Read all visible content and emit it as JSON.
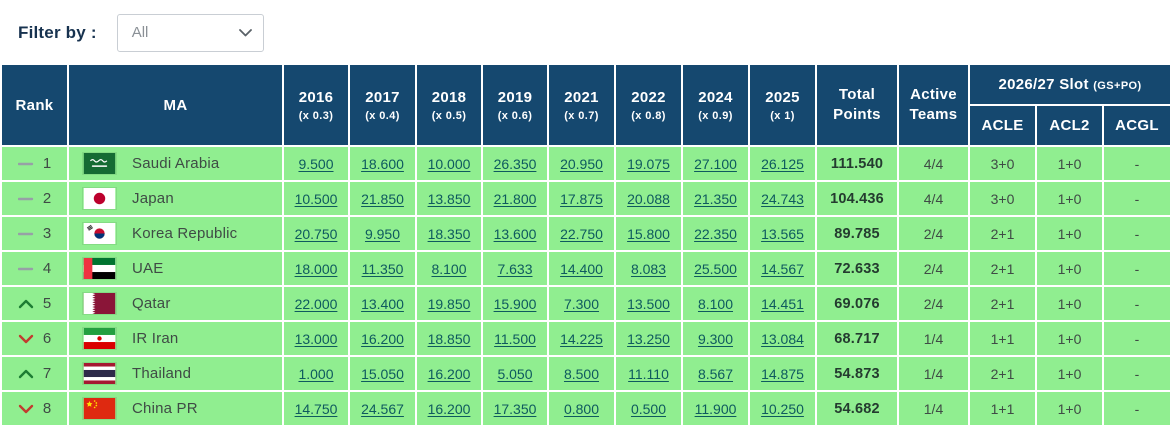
{
  "filter": {
    "label": "Filter by :",
    "selected": "All"
  },
  "colors": {
    "header_bg": "#15486F",
    "row_bg": "#90EE90",
    "link": "#0E5A5E",
    "label_navy": "#17324F",
    "body_text": "#3F4B45",
    "total_text": "#243B2F",
    "up": "#1D7D33",
    "down": "#C23B2F",
    "dash": "#97A0A6"
  },
  "table": {
    "headers": {
      "rank": "Rank",
      "ma": "MA",
      "years": [
        {
          "year": "2016",
          "multiplier": "(x 0.3)"
        },
        {
          "year": "2017",
          "multiplier": "(x 0.4)"
        },
        {
          "year": "2018",
          "multiplier": "(x 0.5)"
        },
        {
          "year": "2019",
          "multiplier": "(x 0.6)"
        },
        {
          "year": "2021",
          "multiplier": "(x 0.7)"
        },
        {
          "year": "2022",
          "multiplier": "(x 0.8)"
        },
        {
          "year": "2024",
          "multiplier": "(x 0.9)"
        },
        {
          "year": "2025",
          "multiplier": "(x 1)"
        }
      ],
      "total": "Total Points",
      "active": "Active Teams",
      "slot_group": "2026/27 Slot",
      "slot_suffix": "(GS+PO)",
      "slot_cols": [
        "ACLE",
        "ACL2",
        "ACGL"
      ]
    },
    "rows": [
      {
        "movement": "same",
        "rank": "1",
        "flag": "sa",
        "country": "Saudi Arabia",
        "values": [
          "9.500",
          "18.600",
          "10.000",
          "26.350",
          "20.950",
          "19.075",
          "27.100",
          "26.125"
        ],
        "total": "111.540",
        "active": "4/4",
        "acle": "3+0",
        "acl2": "1+0",
        "acgl": "-"
      },
      {
        "movement": "same",
        "rank": "2",
        "flag": "jp",
        "country": "Japan",
        "values": [
          "10.500",
          "21.850",
          "13.850",
          "21.800",
          "17.875",
          "20.088",
          "21.350",
          "24.743"
        ],
        "total": "104.436",
        "active": "4/4",
        "acle": "3+0",
        "acl2": "1+0",
        "acgl": "-"
      },
      {
        "movement": "same",
        "rank": "3",
        "flag": "kr",
        "country": "Korea Republic",
        "values": [
          "20.750",
          "9.950",
          "18.350",
          "13.600",
          "22.750",
          "15.800",
          "22.350",
          "13.565"
        ],
        "total": "89.785",
        "active": "2/4",
        "acle": "2+1",
        "acl2": "1+0",
        "acgl": "-"
      },
      {
        "movement": "same",
        "rank": "4",
        "flag": "ae",
        "country": "UAE",
        "values": [
          "18.000",
          "11.350",
          "8.100",
          "7.633",
          "14.400",
          "8.083",
          "25.500",
          "14.567"
        ],
        "total": "72.633",
        "active": "2/4",
        "acle": "2+1",
        "acl2": "1+0",
        "acgl": "-"
      },
      {
        "movement": "up",
        "rank": "5",
        "flag": "qa",
        "country": "Qatar",
        "values": [
          "22.000",
          "13.400",
          "19.850",
          "15.900",
          "7.300",
          "13.500",
          "8.100",
          "14.451"
        ],
        "total": "69.076",
        "active": "2/4",
        "acle": "2+1",
        "acl2": "1+0",
        "acgl": "-"
      },
      {
        "movement": "down",
        "rank": "6",
        "flag": "ir",
        "country": "IR Iran",
        "values": [
          "13.000",
          "16.200",
          "18.850",
          "11.500",
          "14.225",
          "13.250",
          "9.300",
          "13.084"
        ],
        "total": "68.717",
        "active": "1/4",
        "acle": "1+1",
        "acl2": "1+0",
        "acgl": "-"
      },
      {
        "movement": "up",
        "rank": "7",
        "flag": "th",
        "country": "Thailand",
        "values": [
          "1.000",
          "15.050",
          "16.200",
          "5.050",
          "8.500",
          "11.110",
          "8.567",
          "14.875"
        ],
        "total": "54.873",
        "active": "1/4",
        "acle": "2+1",
        "acl2": "1+0",
        "acgl": "-"
      },
      {
        "movement": "down",
        "rank": "8",
        "flag": "cn",
        "country": "China PR",
        "values": [
          "14.750",
          "24.567",
          "16.200",
          "17.350",
          "0.800",
          "0.500",
          "11.900",
          "10.250"
        ],
        "total": "54.682",
        "active": "1/4",
        "acle": "1+1",
        "acl2": "1+0",
        "acgl": "-"
      }
    ]
  }
}
